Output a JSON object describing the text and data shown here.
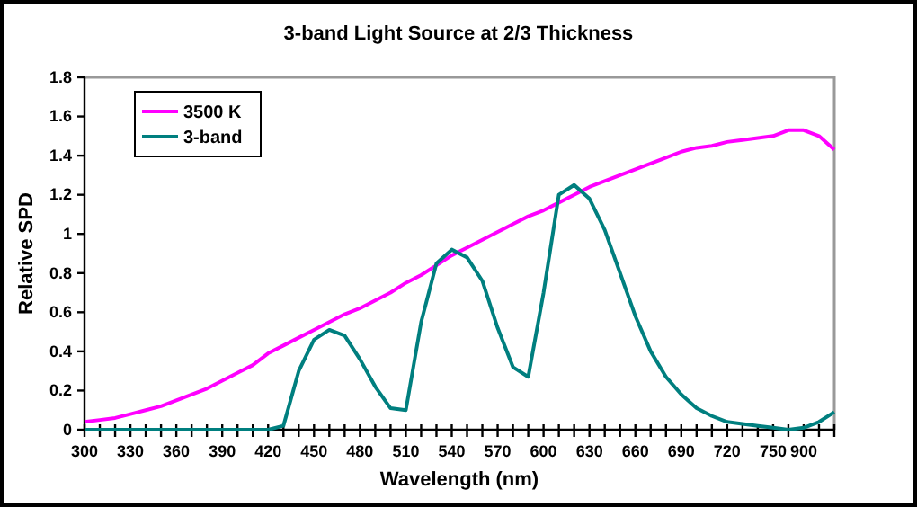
{
  "chart_data": {
    "type": "line",
    "title": "3-band Light Source at 2/3 Thickness",
    "xlabel": "Wavelength (nm)",
    "ylabel": "Relative SPD",
    "categories": [
      "300",
      null,
      null,
      "330",
      null,
      null,
      "360",
      null,
      null,
      "390",
      null,
      null,
      "420",
      null,
      null,
      "450",
      null,
      null,
      "480",
      null,
      null,
      "510",
      null,
      null,
      "540",
      null,
      null,
      "570",
      null,
      null,
      "600",
      null,
      null,
      "630",
      null,
      null,
      "660",
      null,
      null,
      "690",
      null,
      null,
      "720",
      null,
      null,
      "750",
      null,
      "900",
      null,
      null
    ],
    "series": [
      {
        "name": "3500 K",
        "color": "#ff00ff",
        "values": [
          0.04,
          0.05,
          0.06,
          0.08,
          0.1,
          0.12,
          0.15,
          0.18,
          0.21,
          0.25,
          0.29,
          0.33,
          0.39,
          0.43,
          0.47,
          0.51,
          0.55,
          0.59,
          0.62,
          0.66,
          0.7,
          0.75,
          0.79,
          0.84,
          0.89,
          0.93,
          0.97,
          1.01,
          1.05,
          1.09,
          1.12,
          1.16,
          1.2,
          1.24,
          1.27,
          1.3,
          1.33,
          1.36,
          1.39,
          1.42,
          1.44,
          1.45,
          1.47,
          1.48,
          1.49,
          1.5,
          1.53,
          1.53,
          1.5,
          1.43
        ]
      },
      {
        "name": "3-band",
        "color": "#007f7f",
        "values": [
          0,
          0,
          0,
          0,
          0,
          0,
          0,
          0,
          0,
          0,
          0,
          0,
          0,
          0.02,
          0.3,
          0.46,
          0.51,
          0.48,
          0.36,
          0.22,
          0.11,
          0.1,
          0.55,
          0.85,
          0.92,
          0.88,
          0.76,
          0.52,
          0.32,
          0.27,
          0.7,
          1.2,
          1.25,
          1.18,
          1.02,
          0.8,
          0.58,
          0.4,
          0.27,
          0.18,
          0.11,
          0.07,
          0.04,
          0.03,
          0.02,
          0.01,
          0.0,
          0.01,
          0.04,
          0.09
        ]
      }
    ],
    "ylim": [
      0,
      1.8
    ],
    "yticks": [
      0,
      0.2,
      0.4,
      0.6,
      0.8,
      1,
      1.2,
      1.4,
      1.6,
      1.8
    ],
    "grid": false,
    "legend": "top left",
    "marker": "none",
    "line_style": "solid"
  }
}
